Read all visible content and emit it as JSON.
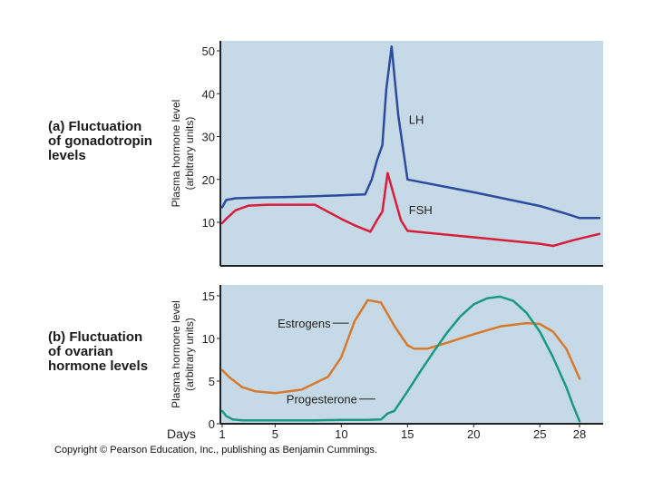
{
  "panel_a_label": [
    "(a) Fluctuation",
    "of gonadotropin",
    "levels"
  ],
  "panel_b_label": [
    "(b) Fluctuation",
    "of ovarian",
    "hormone levels"
  ],
  "copyright": "Copyright © Pearson Education, Inc., publishing as Benjamin Cummings.",
  "colors": {
    "panel_bg": "#c6d9e6",
    "lh": "#2c4ca0",
    "fsh": "#d81e3c",
    "estrogens": "#d77a2e",
    "progesterone": "#1a9a80",
    "axis": "#222222"
  },
  "chart_data": [
    {
      "type": "line",
      "title": "(a) Fluctuation of gonadotropin levels",
      "ylabel": [
        "Plasma hormone level",
        "(arbitrary units)"
      ],
      "xlim": [
        1,
        29.5
      ],
      "ylim": [
        0,
        52
      ],
      "yticks": [
        10,
        20,
        30,
        40,
        50
      ],
      "series": [
        {
          "name": "LH",
          "color_key": "lh",
          "label_anchor": [
            15.1,
            34
          ],
          "x": [
            1,
            1.3,
            2,
            4,
            6,
            8,
            10,
            11.8,
            12.3,
            12.7,
            13.1,
            13.4,
            13.8,
            14.3,
            15,
            20,
            25,
            27,
            28,
            29.5
          ],
          "y": [
            13.5,
            15.2,
            15.6,
            15.8,
            15.9,
            16.1,
            16.3,
            16.5,
            20,
            24.5,
            28,
            41,
            51,
            35,
            20,
            17,
            13.8,
            12,
            11,
            11
          ]
        },
        {
          "name": "FSH",
          "color_key": "fsh",
          "label_anchor": [
            15.1,
            13
          ],
          "x": [
            1,
            1.3,
            2,
            3,
            4.5,
            6,
            8,
            10,
            11,
            12.2,
            12.7,
            13.1,
            13.5,
            14,
            14.5,
            15,
            20,
            25,
            26,
            27.5,
            29.5
          ],
          "y": [
            9.8,
            10.8,
            12.8,
            13.9,
            14.1,
            14.1,
            14.1,
            10.8,
            9.3,
            7.8,
            10.5,
            12.5,
            21.5,
            16,
            10.5,
            8,
            6.5,
            5,
            4.5,
            5.8,
            7.3
          ]
        }
      ]
    },
    {
      "type": "line",
      "title": "(b) Fluctuation of ovarian hormone levels",
      "ylabel": [
        "Plasma hormone level",
        "(arbitrary units)"
      ],
      "xlabel": "Days",
      "xlim": [
        1,
        29.5
      ],
      "ylim": [
        0,
        15.8
      ],
      "yticks": [
        0,
        5,
        10,
        15
      ],
      "xticks": [
        1,
        5,
        10,
        15,
        20,
        25,
        28
      ],
      "series": [
        {
          "name": "Estrogens",
          "color_key": "estrogens",
          "label_anchor": [
            9.2,
            11.8
          ],
          "x": [
            1,
            1.5,
            2.5,
            3.5,
            5,
            7,
            9,
            10,
            11,
            12,
            13,
            14,
            15,
            15.5,
            16.5,
            18,
            20,
            22,
            24,
            25,
            26,
            27,
            28
          ],
          "y": [
            6.3,
            5.5,
            4.3,
            3.8,
            3.6,
            4,
            5.5,
            7.8,
            12,
            14.5,
            14.2,
            11.5,
            9.2,
            8.8,
            8.8,
            9.5,
            10.5,
            11.4,
            11.8,
            11.7,
            10.8,
            8.8,
            5.3
          ]
        },
        {
          "name": "Progesterone",
          "color_key": "progesterone",
          "label_anchor": [
            11.2,
            2.9
          ],
          "x": [
            1,
            1.3,
            1.8,
            2.5,
            4,
            6,
            8,
            10,
            12,
            13,
            13.5,
            14,
            15,
            16,
            17,
            18,
            19,
            20,
            21,
            22,
            23,
            24,
            25,
            26,
            27,
            27.5,
            28
          ],
          "y": [
            1.5,
            0.9,
            0.5,
            0.4,
            0.4,
            0.4,
            0.4,
            0.45,
            0.45,
            0.5,
            1.2,
            1.5,
            3.8,
            6.2,
            8.5,
            10.7,
            12.6,
            14,
            14.7,
            14.9,
            14.4,
            13,
            10.8,
            7.8,
            4.3,
            2.2,
            0.3
          ]
        }
      ]
    }
  ]
}
